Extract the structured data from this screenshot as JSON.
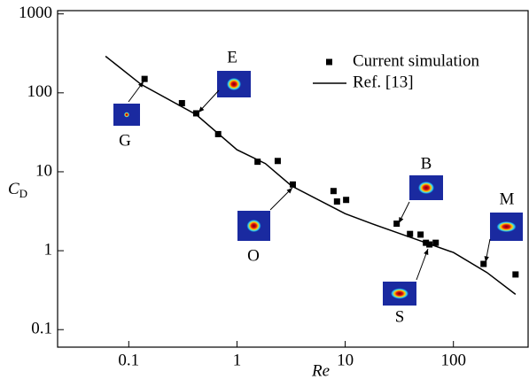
{
  "chart_data": {
    "type": "scatter",
    "x_label": "Re",
    "y_label": {
      "main": "C",
      "sub": "D"
    },
    "log_x": true,
    "log_y": true,
    "xlim": [
      0.022,
      490
    ],
    "ylim": [
      0.06,
      1100
    ],
    "xticks": [
      0.1,
      1,
      10,
      100
    ],
    "yticks": [
      0.1,
      1,
      10,
      100,
      1000
    ],
    "legend": "top-right",
    "series": [
      {
        "name": "Current simulation",
        "type": "scatter",
        "color": "#000000",
        "x": [
          0.14,
          0.31,
          0.42,
          0.67,
          1.55,
          2.38,
          3.28,
          7.8,
          8.4,
          10.2,
          29.9,
          39.7,
          49.7,
          55.7,
          60,
          68.6,
          190,
          375
        ],
        "values": [
          150,
          74,
          55,
          30,
          13.4,
          13.7,
          6.9,
          5.7,
          4.2,
          4.4,
          2.2,
          1.63,
          1.6,
          1.26,
          1.2,
          1.26,
          0.68,
          0.5
        ]
      },
      {
        "name": "Ref. [13]",
        "type": "line",
        "color": "#000000",
        "x": [
          0.061,
          0.13,
          0.42,
          1,
          1.83,
          3.2,
          10,
          17.6,
          31,
          100,
          204,
          375
        ],
        "values": [
          291,
          128,
          53,
          19,
          12.7,
          6.6,
          2.94,
          2.2,
          1.67,
          0.95,
          0.53,
          0.28
        ]
      }
    ],
    "annotations": [
      {
        "text": "G"
      },
      {
        "text": "E"
      },
      {
        "text": "O"
      },
      {
        "text": "B"
      },
      {
        "text": "S"
      },
      {
        "text": "M"
      }
    ]
  }
}
